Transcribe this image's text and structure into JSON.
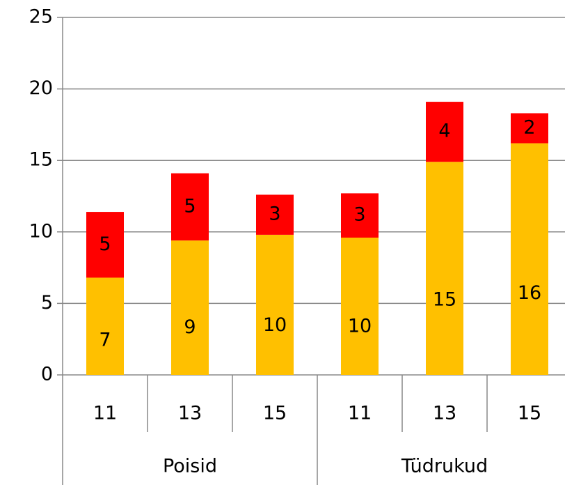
{
  "chart_data": {
    "type": "stacked_bar",
    "categories": [
      "11",
      "13",
      "15",
      "11",
      "13",
      "15"
    ],
    "groups": [
      "Poisid",
      "Tüdrukud"
    ],
    "series": [
      {
        "color": "#FFC000",
        "values": [
          6.8,
          9.4,
          9.8,
          9.6,
          14.9,
          16.2
        ],
        "value_labels": [
          "7",
          "9",
          "10",
          "10",
          "15",
          "16"
        ]
      },
      {
        "color": "#FF0000",
        "values": [
          4.6,
          4.7,
          2.8,
          3.1,
          4.2,
          2.1
        ],
        "value_labels": [
          "5",
          "5",
          "3",
          "3",
          "4",
          "2"
        ]
      }
    ],
    "ylim": [
      0,
      25
    ],
    "yticks": [
      0,
      5,
      10,
      15,
      20,
      25
    ],
    "grid": true
  }
}
